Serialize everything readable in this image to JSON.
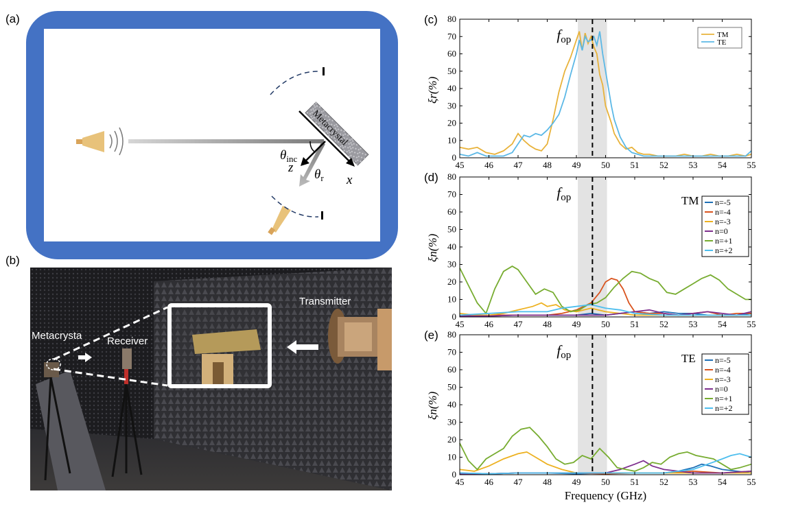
{
  "panels": {
    "a": "(a)",
    "b": "(b)",
    "c": "(c)",
    "d": "(d)",
    "e": "(e)"
  },
  "schematic": {
    "metacrystal_label": "Metacrystal",
    "theta_inc": "θ",
    "theta_inc_sub": "inc",
    "theta_r": "θ",
    "theta_r_sub": "r",
    "axis_z": "z",
    "axis_x": "x",
    "colors": {
      "chamber": "#4472c4",
      "absorber": "#ffffff",
      "horn": "#e0b96a"
    }
  },
  "photo": {
    "labels": {
      "metacrystal": "Metacrysta",
      "receiver": "Receiver",
      "transmitter": "Transmitter"
    }
  },
  "shared": {
    "fop_label": "f",
    "fop_sub": "op",
    "xlabel": "Frequency (GHz)"
  },
  "chart_data": [
    {
      "id": "c",
      "type": "line",
      "ylabel": "ξr(%)",
      "xlim": [
        45,
        55
      ],
      "ylim": [
        0,
        80
      ],
      "xticks": [
        "45",
        "46",
        "47",
        "48",
        "49",
        "50",
        "51",
        "52",
        "53",
        "54",
        "55"
      ],
      "yticks": [
        "0",
        "10",
        "20",
        "30",
        "40",
        "50",
        "60",
        "70",
        "80"
      ],
      "fop": 49.55,
      "band": [
        49.05,
        50.05
      ],
      "legend_position": "top-right",
      "series": [
        {
          "name": "TM",
          "color": "#e8b23a",
          "x": [
            45,
            45.3,
            45.6,
            45.9,
            46.2,
            46.5,
            46.8,
            47.0,
            47.2,
            47.4,
            47.6,
            47.8,
            48.0,
            48.2,
            48.4,
            48.6,
            48.8,
            49.0,
            49.1,
            49.2,
            49.3,
            49.4,
            49.5,
            49.6,
            49.7,
            49.8,
            49.9,
            50.0,
            50.1,
            50.2,
            50.3,
            50.5,
            50.7,
            50.9,
            51.1,
            51.3,
            51.5,
            51.8,
            52.1,
            52.4,
            52.7,
            53.0,
            53.3,
            53.6,
            53.9,
            54.2,
            54.5,
            54.8,
            55
          ],
          "y": [
            6,
            5,
            6,
            3,
            2,
            4,
            8,
            14,
            10,
            7,
            5,
            4,
            8,
            22,
            38,
            50,
            58,
            68,
            73,
            62,
            72,
            66,
            70,
            64,
            60,
            48,
            42,
            30,
            25,
            20,
            14,
            8,
            5,
            6,
            3,
            2,
            2,
            1,
            1,
            1,
            2,
            1,
            1,
            2,
            1,
            1,
            2,
            1,
            2
          ]
        },
        {
          "name": "TE",
          "color": "#5bb8e6",
          "x": [
            45,
            45.3,
            45.6,
            45.9,
            46.2,
            46.5,
            46.8,
            47.0,
            47.2,
            47.4,
            47.6,
            47.8,
            48.0,
            48.2,
            48.4,
            48.6,
            48.8,
            49.0,
            49.1,
            49.2,
            49.3,
            49.4,
            49.5,
            49.6,
            49.7,
            49.8,
            49.9,
            50.0,
            50.1,
            50.2,
            50.3,
            50.5,
            50.7,
            50.9,
            51.1,
            51.3,
            51.5,
            51.8,
            52.1,
            52.4,
            52.7,
            53.0,
            53.3,
            53.6,
            53.9,
            54.2,
            54.5,
            54.8,
            55
          ],
          "y": [
            2,
            1,
            3,
            1,
            1,
            1,
            3,
            8,
            13,
            12,
            14,
            13,
            16,
            20,
            25,
            35,
            48,
            60,
            68,
            62,
            70,
            67,
            68,
            70,
            65,
            73,
            60,
            50,
            40,
            30,
            22,
            12,
            6,
            3,
            2,
            1,
            1,
            1,
            1,
            1,
            1,
            1,
            1,
            1,
            1,
            1,
            1,
            1,
            4
          ]
        }
      ]
    },
    {
      "id": "d",
      "type": "line",
      "ylabel": "ξn(%)",
      "mode_label": "TM",
      "xlim": [
        45,
        55
      ],
      "ylim": [
        0,
        80
      ],
      "xticks": [
        "45",
        "46",
        "47",
        "48",
        "49",
        "50",
        "51",
        "52",
        "53",
        "54",
        "55"
      ],
      "yticks": [
        "0",
        "10",
        "20",
        "30",
        "40",
        "50",
        "60",
        "70",
        "80"
      ],
      "fop": 49.55,
      "band": [
        49.05,
        50.05
      ],
      "legend_position": "top-right",
      "series": [
        {
          "name": "n=-5",
          "color": "#1f6fb5",
          "x": [
            45,
            46,
            47,
            48,
            49,
            49.5,
            50,
            50.5,
            51,
            51.5,
            52,
            52.5,
            53,
            53.5,
            54,
            54.5,
            55
          ],
          "y": [
            1,
            0.5,
            1,
            1,
            1,
            2,
            1,
            2,
            3,
            2,
            3,
            2,
            2,
            1,
            1,
            1,
            2
          ]
        },
        {
          "name": "n=-4",
          "color": "#d9531e",
          "x": [
            45,
            46,
            47,
            48,
            48.5,
            49,
            49.5,
            49.8,
            50,
            50.2,
            50.4,
            50.6,
            50.8,
            51,
            51.5,
            52,
            52.5,
            53,
            53.5,
            54,
            54.5,
            55
          ],
          "y": [
            1,
            1,
            1,
            1,
            2,
            4,
            8,
            14,
            20,
            22,
            21,
            16,
            8,
            3,
            2,
            2,
            1,
            2,
            3,
            1,
            2,
            2
          ]
        },
        {
          "name": "n=-3",
          "color": "#edb120",
          "x": [
            45,
            45.5,
            46,
            46.5,
            47,
            47.5,
            47.8,
            48,
            48.3,
            48.6,
            49,
            49.5,
            50,
            50.5,
            51,
            52,
            53,
            54,
            55
          ],
          "y": [
            2,
            1,
            1,
            2,
            4,
            6,
            8,
            6,
            7,
            4,
            3,
            5,
            3,
            2,
            1,
            1,
            1,
            1,
            1
          ]
        },
        {
          "name": "n=0",
          "color": "#7e2f8e",
          "x": [
            45,
            46,
            47,
            48,
            49,
            50,
            50.5,
            51,
            51.5,
            52,
            52.5,
            53,
            53.5,
            54,
            54.5,
            55
          ],
          "y": [
            0.5,
            0.5,
            1,
            1,
            1,
            1,
            2,
            3,
            4,
            2,
            1,
            2,
            3,
            2,
            1,
            3
          ]
        },
        {
          "name": "n=+1",
          "color": "#77ac30",
          "x": [
            45,
            45.3,
            45.6,
            45.9,
            46.2,
            46.5,
            46.8,
            47.0,
            47.3,
            47.6,
            47.9,
            48.2,
            48.5,
            48.8,
            49.1,
            49.4,
            49.7,
            50.0,
            50.3,
            50.6,
            50.9,
            51.2,
            51.5,
            51.8,
            52.1,
            52.4,
            52.7,
            53.0,
            53.3,
            53.6,
            53.9,
            54.2,
            54.5,
            54.8,
            55
          ],
          "y": [
            28,
            18,
            8,
            2,
            16,
            26,
            29,
            27,
            20,
            13,
            16,
            14,
            6,
            3,
            4,
            7,
            8,
            11,
            17,
            22,
            26,
            25,
            22,
            20,
            14,
            13,
            16,
            19,
            22,
            24,
            21,
            16,
            13,
            10,
            10
          ]
        },
        {
          "name": "n=+2",
          "color": "#4dbeee",
          "x": [
            45,
            46,
            47,
            48,
            48.5,
            49,
            49.5,
            50,
            50.5,
            51,
            52,
            53,
            54,
            55
          ],
          "y": [
            1,
            2,
            3,
            3,
            5,
            6,
            7,
            5,
            4,
            2,
            1,
            1,
            1,
            1
          ]
        }
      ]
    },
    {
      "id": "e",
      "type": "line",
      "ylabel": "ξn(%)",
      "mode_label": "TE",
      "xlim": [
        45,
        55
      ],
      "ylim": [
        0,
        80
      ],
      "xticks": [
        "45",
        "46",
        "47",
        "48",
        "49",
        "50",
        "51",
        "52",
        "53",
        "54",
        "55"
      ],
      "yticks": [
        "0",
        "10",
        "20",
        "30",
        "40",
        "50",
        "60",
        "70",
        "80"
      ],
      "fop": 49.55,
      "band": [
        49.05,
        50.05
      ],
      "legend_position": "top-right",
      "series": [
        {
          "name": "n=-5",
          "color": "#1f6fb5",
          "x": [
            45,
            46,
            47,
            48,
            49,
            50,
            51,
            52,
            52.5,
            53,
            53.3,
            53.6,
            54,
            54.5,
            55
          ],
          "y": [
            1,
            0.5,
            1,
            1,
            0.5,
            1,
            1,
            1,
            2,
            4,
            6,
            5,
            3,
            2,
            1
          ]
        },
        {
          "name": "n=-4",
          "color": "#d9531e",
          "x": [
            45,
            46,
            47,
            48,
            49,
            50,
            51,
            52,
            53,
            54,
            55
          ],
          "y": [
            0.5,
            0.5,
            1,
            1,
            1,
            0.5,
            1,
            1,
            2,
            1,
            2
          ]
        },
        {
          "name": "n=-3",
          "color": "#edb120",
          "x": [
            45,
            45.5,
            46,
            46.5,
            47,
            47.3,
            47.6,
            48,
            48.5,
            49,
            49.5,
            50,
            51,
            52,
            53,
            54,
            55
          ],
          "y": [
            3,
            2,
            5,
            9,
            12,
            13,
            10,
            6,
            3,
            1,
            1,
            1,
            1,
            1,
            1,
            1,
            1
          ]
        },
        {
          "name": "n=0",
          "color": "#7e2f8e",
          "x": [
            45,
            46,
            47,
            48,
            49,
            50,
            50.5,
            51,
            51.3,
            51.6,
            52,
            52.5,
            53,
            54,
            55
          ],
          "y": [
            0.5,
            0.5,
            1,
            1,
            1,
            1,
            3,
            6,
            8,
            5,
            3,
            2,
            1,
            1,
            2
          ]
        },
        {
          "name": "n=+1",
          "color": "#77ac30",
          "x": [
            45,
            45.3,
            45.6,
            45.9,
            46.2,
            46.5,
            46.8,
            47.1,
            47.4,
            47.7,
            48.0,
            48.3,
            48.6,
            48.9,
            49.2,
            49.5,
            49.8,
            50.1,
            50.4,
            50.7,
            51.0,
            51.3,
            51.6,
            51.9,
            52.2,
            52.5,
            52.8,
            53.1,
            53.4,
            53.7,
            54.0,
            54.3,
            54.6,
            55
          ],
          "y": [
            18,
            8,
            3,
            9,
            12,
            15,
            22,
            26,
            27,
            22,
            16,
            9,
            6,
            7,
            11,
            9,
            15,
            10,
            4,
            3,
            2,
            4,
            7,
            6,
            10,
            12,
            13,
            11,
            10,
            9,
            6,
            3,
            4,
            6
          ]
        },
        {
          "name": "n=+2",
          "color": "#4dbeee",
          "x": [
            45,
            46,
            47,
            48,
            49,
            50,
            51,
            52,
            52.5,
            53,
            53.5,
            54,
            54.3,
            54.6,
            55
          ],
          "y": [
            1,
            0.5,
            1,
            1,
            1,
            1,
            1,
            1,
            2,
            3,
            6,
            9,
            11,
            12,
            10
          ]
        }
      ]
    }
  ]
}
